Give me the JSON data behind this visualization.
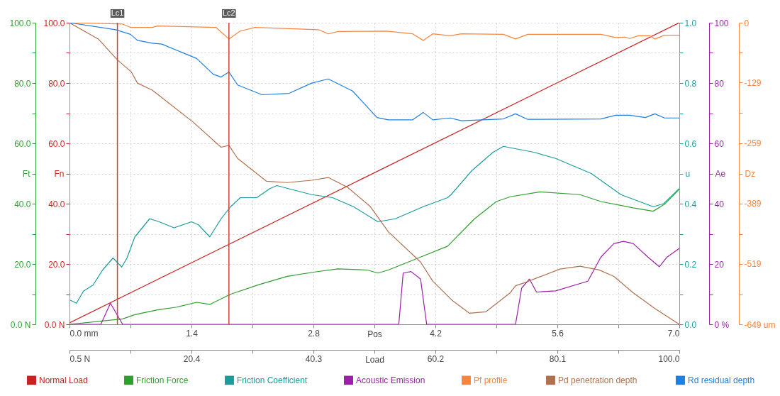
{
  "chart_data": {
    "type": "line",
    "xlabel": "Pos",
    "x2label": "Load",
    "ylabel": "Fn",
    "y2label": "u",
    "y3label": "Dz",
    "annotations": [
      "Ft",
      "Ae",
      "0 %",
      "20",
      "40",
      "60",
      "80",
      "100"
    ],
    "xlim": [
      0,
      7
    ],
    "xticks": [
      {
        "value": 0,
        "label": "0.0 mm"
      },
      {
        "value": 0.7,
        "label": null
      },
      {
        "value": 1.4,
        "label": "1.4"
      },
      {
        "value": 2.1,
        "label": null
      },
      {
        "value": 2.8,
        "label": "2.8"
      },
      {
        "value": 3.5,
        "label": null
      },
      {
        "value": 4.2,
        "label": "4.2"
      },
      {
        "value": 4.9,
        "label": null
      },
      {
        "value": 5.6,
        "label": "5.6"
      },
      {
        "value": 6.3,
        "label": null
      },
      {
        "value": 7,
        "label": "7.0"
      }
    ],
    "x2lim": [
      0.5,
      100
    ],
    "x2ticks": [
      {
        "value": 0.5,
        "label": "0.5 N"
      },
      {
        "value": 10.45,
        "label": null
      },
      20.4,
      {
        "value": 30.35,
        "label": null
      },
      40.3,
      {
        "value": 50.25,
        "label": null
      },
      60.2,
      {
        "value": 70.15,
        "label": null
      },
      80.1,
      {
        "value": 90.05,
        "label": null
      },
      {
        "value": 100,
        "label": "100.0"
      }
    ],
    "ylim": [
      0,
      100
    ],
    "yticks": [
      {
        "value": 0,
        "label": "0.0 N"
      },
      {
        "value": 10,
        "label": null
      },
      {
        "value": 20,
        "label": "20.0"
      },
      {
        "value": 30,
        "label": null
      },
      {
        "value": 40,
        "label": "40.0"
      },
      {
        "value": 50,
        "label": null
      },
      {
        "value": 60,
        "label": "60.0"
      },
      {
        "value": 70,
        "label": null
      },
      {
        "value": 80,
        "label": "80.0"
      },
      {
        "value": 90,
        "label": null
      },
      {
        "value": 100,
        "label": "100.0"
      }
    ],
    "y2lim": [
      0,
      1
    ],
    "y2ticks": [
      {
        "value": 0,
        "label": "0.0"
      },
      {
        "value": 0.1,
        "label": null
      },
      0.2,
      {
        "value": 0.3,
        "label": null
      },
      0.4,
      {
        "value": 0.5,
        "label": null
      },
      0.6,
      {
        "value": 0.7,
        "label": null
      },
      0.8,
      {
        "value": 0.9,
        "label": null
      },
      {
        "value": 1,
        "label": "1.0"
      }
    ],
    "y3lim": [
      -649,
      0
    ],
    "y3ticks": [
      {
        "value": -649,
        "label": "-649 um"
      },
      {
        "value": -584.1,
        "label": null
      },
      -519,
      {
        "value": -454.3,
        "label": null
      },
      -389,
      {
        "value": -324.5,
        "label": null
      },
      -259,
      {
        "value": -194.7,
        "label": null
      },
      -129,
      {
        "value": -64.9,
        "label": null
      },
      0
    ],
    "grid": true,
    "legend": "bottom",
    "ref_lines": [
      {
        "axis": "x",
        "value": 0.55,
        "label": "Lc1",
        "color": "#c8443c"
      },
      {
        "axis": "x",
        "value": 1.83,
        "label": "Lc2",
        "color": "#c8443c"
      }
    ],
    "series": [
      {
        "name": "Normal Load",
        "color": "#cc1f1f",
        "axis": "y",
        "x": [
          0,
          7
        ],
        "values": [
          0.5,
          100
        ]
      },
      {
        "name": "Friction Force",
        "color": "#2e9e2e",
        "axis": "y",
        "x": [
          0,
          0.61,
          0.75,
          1.01,
          1.23,
          1.46,
          1.61,
          1.85,
          2.18,
          2.5,
          2.8,
          3.08,
          3.42,
          3.54,
          3.66,
          4.03,
          4.34,
          4.65,
          4.9,
          5.06,
          5.4,
          5.86,
          6.1,
          6.47,
          6.7,
          6.83,
          7
        ],
        "values": [
          0,
          1.8,
          3.2,
          4.8,
          5.7,
          7.3,
          6.6,
          10,
          13.2,
          15.9,
          17.3,
          18.4,
          18,
          17,
          18,
          22.3,
          25.9,
          35,
          40.7,
          42.3,
          43.9,
          43,
          40.7,
          38.6,
          37.5,
          39.8,
          44.8
        ]
      },
      {
        "name": "Friction Coefficient",
        "color": "#1a9c9c",
        "axis": "y2",
        "x": [
          0.01,
          0.08,
          0.16,
          0.27,
          0.38,
          0.5,
          0.6,
          0.66,
          0.75,
          0.92,
          1.03,
          1.2,
          1.4,
          1.48,
          1.61,
          1.74,
          1.85,
          1.96,
          2.15,
          2.3,
          2.38,
          2.78,
          3.02,
          3.26,
          3.54,
          3.74,
          4.06,
          4.34,
          4.38,
          4.62,
          4.86,
          4.98,
          5.34,
          5.58,
          5.99,
          6.33,
          6.7,
          6.82,
          7
        ],
        "values": [
          0.08,
          0.07,
          0.11,
          0.13,
          0.18,
          0.22,
          0.19,
          0.22,
          0.29,
          0.35,
          0.34,
          0.32,
          0.34,
          0.33,
          0.29,
          0.35,
          0.39,
          0.42,
          0.42,
          0.45,
          0.46,
          0.43,
          0.42,
          0.39,
          0.34,
          0.35,
          0.39,
          0.42,
          0.43,
          0.51,
          0.57,
          0.59,
          0.57,
          0.55,
          0.5,
          0.43,
          0.39,
          0.4,
          0.45
        ]
      },
      {
        "name": "Acoustic Emission",
        "color": "#9c1fa8",
        "axis": "y",
        "x": [
          0,
          0.36,
          0.47,
          0.61,
          3.78,
          3.83,
          3.92,
          4.03,
          4.1,
          5.12,
          5.19,
          5.28,
          5.36,
          5.58,
          5.95,
          6.1,
          6.25,
          6.36,
          6.47,
          6.64,
          6.77,
          6.86,
          7
        ],
        "values": [
          0,
          0,
          7,
          0,
          0,
          17,
          17.5,
          15,
          0,
          0,
          12,
          15,
          10.7,
          11.1,
          14.3,
          22.3,
          26.8,
          27.5,
          26.8,
          22.3,
          19.1,
          22.3,
          25.2
        ]
      },
      {
        "name": "Pf  profile",
        "color": "#f5863f",
        "axis": "y3",
        "x": [
          0,
          0.61,
          0.7,
          0.95,
          1.01,
          1.68,
          1.83,
          1.96,
          2.13,
          2.86,
          2.97,
          3.08,
          3.64,
          3.94,
          4.06,
          4.17,
          4.37,
          4.5,
          4.98,
          5.12,
          5.26,
          6.1,
          6.27,
          6.38,
          6.43,
          6.53,
          6.66,
          6.72,
          6.83,
          7
        ],
        "values": [
          0,
          -3,
          -10,
          -10,
          -7,
          -10,
          -35,
          -18,
          -10,
          -15,
          -24,
          -19,
          -18,
          -24,
          -38,
          -24,
          -28,
          -24,
          -25,
          -35,
          -25,
          -25,
          -32,
          -31,
          -34,
          -28,
          -28,
          -35,
          -27,
          -27
        ]
      },
      {
        "name": "Pd  penetration depth",
        "color": "#b0714f",
        "axis": "y3",
        "x": [
          0,
          0.33,
          0.55,
          0.71,
          0.78,
          0.95,
          1.42,
          1.74,
          1.83,
          1.93,
          2.26,
          2.5,
          2.78,
          2.97,
          3.19,
          3.45,
          3.66,
          4.03,
          4.17,
          4.39,
          4.59,
          4.78,
          5.06,
          5.12,
          5.23,
          5.63,
          5.86,
          6.08,
          6.25,
          6.47,
          6.72,
          7
        ],
        "values": [
          0,
          -35,
          -80,
          -106,
          -130,
          -145,
          -214,
          -268,
          -264,
          -292,
          -341,
          -344,
          -339,
          -333,
          -354,
          -395,
          -450,
          -515,
          -556,
          -597,
          -625,
          -622,
          -581,
          -566,
          -559,
          -530,
          -524,
          -532,
          -546,
          -581,
          -615,
          -649
        ]
      },
      {
        "name": "Rd  residual depth",
        "color": "#1f7fe0",
        "axis": "y3",
        "x": [
          0,
          0.53,
          0.7,
          0.78,
          0.95,
          1.06,
          1.46,
          1.65,
          1.74,
          1.83,
          1.93,
          2.21,
          2.52,
          2.78,
          2.97,
          3.25,
          3.53,
          3.66,
          3.94,
          4.06,
          4.17,
          4.37,
          4.5,
          4.98,
          5.12,
          5.26,
          6.1,
          6.27,
          6.43,
          6.61,
          6.72,
          6.83,
          7
        ],
        "values": [
          0,
          -15,
          -25,
          -38,
          -44,
          -46,
          -77,
          -111,
          -117,
          -106,
          -134,
          -155,
          -152,
          -130,
          -121,
          -147,
          -204,
          -209,
          -209,
          -193,
          -209,
          -205,
          -211,
          -207,
          -196,
          -208,
          -207,
          -199,
          -199,
          -204,
          -196,
          -205,
          -205
        ]
      }
    ]
  }
}
